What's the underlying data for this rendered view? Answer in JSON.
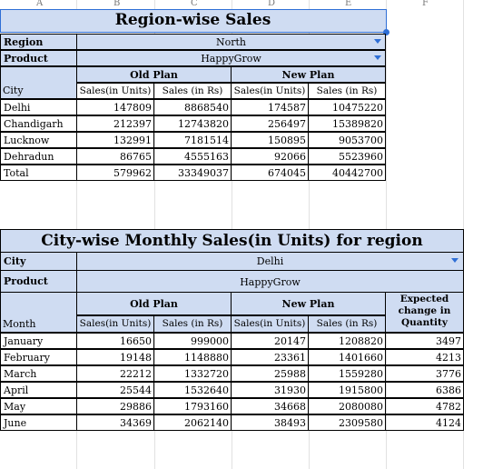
{
  "col_headers": [
    "A",
    "B",
    "C",
    "D",
    "E",
    "F"
  ],
  "region_table": {
    "title": "Region-wise Sales",
    "region_label": "Region",
    "region_value": "North",
    "product_label": "Product",
    "product_value": "HappyGrow",
    "old_plan": "Old Plan",
    "new_plan": "New Plan",
    "city_header": "City",
    "sub_headers": [
      "Sales(in Units)",
      "Sales (in Rs)",
      "Sales(in Units)",
      "Sales (in Rs)"
    ],
    "rows": [
      {
        "city": "Delhi",
        "v": [
          "147809",
          "8868540",
          "174587",
          "10475220"
        ]
      },
      {
        "city": "Chandigarh",
        "v": [
          "212397",
          "12743820",
          "256497",
          "15389820"
        ]
      },
      {
        "city": "Lucknow",
        "v": [
          "132991",
          "7181514",
          "150895",
          "9053700"
        ]
      },
      {
        "city": "Dehradun",
        "v": [
          "86765",
          "4555163",
          "92066",
          "5523960"
        ]
      },
      {
        "city": "Total",
        "v": [
          "579962",
          "33349037",
          "674045",
          "40442700"
        ]
      }
    ]
  },
  "city_table": {
    "title": "City-wise  Monthly Sales(in Units) for region",
    "city_label": "City",
    "city_value": "Delhi",
    "product_label": "Product",
    "product_value": "HappyGrow",
    "old_plan": "Old Plan",
    "new_plan": "New Plan",
    "expected": "Expected change in Quantity",
    "month_header": "Month",
    "sub_headers": [
      "Sales(in Units)",
      "Sales (in Rs)",
      "Sales(in Units)",
      "Sales (in Rs)"
    ],
    "rows": [
      {
        "month": "January",
        "v": [
          "16650",
          "999000",
          "20147",
          "1208820",
          "3497"
        ]
      },
      {
        "month": "February",
        "v": [
          "19148",
          "1148880",
          "23361",
          "1401660",
          "4213"
        ]
      },
      {
        "month": "March",
        "v": [
          "22212",
          "1332720",
          "25988",
          "1559280",
          "3776"
        ]
      },
      {
        "month": "April",
        "v": [
          "25544",
          "1532640",
          "31930",
          "1915800",
          "6386"
        ]
      },
      {
        "month": "May",
        "v": [
          "29886",
          "1793160",
          "34668",
          "2080080",
          "4782"
        ]
      },
      {
        "month": "June",
        "v": [
          "34369",
          "2062140",
          "38493",
          "2309580",
          "4124"
        ]
      }
    ]
  },
  "colors": {
    "header_fill": "#cfdcf2",
    "selection": "#2f6fd6"
  }
}
